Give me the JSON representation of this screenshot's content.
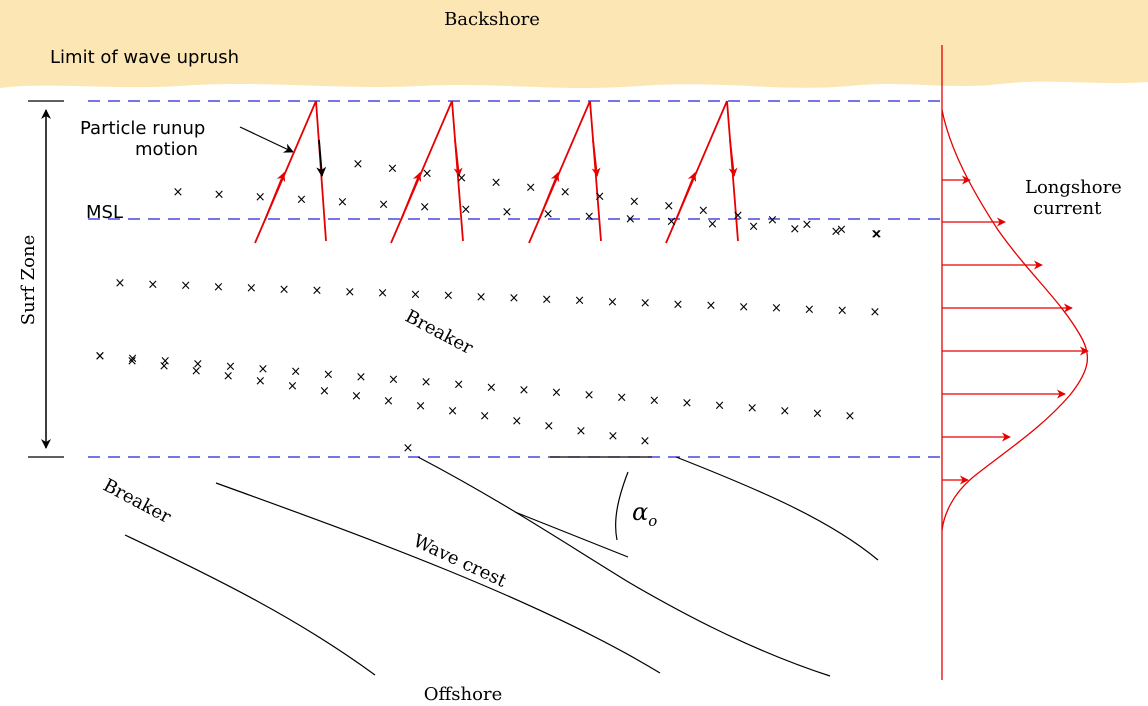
{
  "labels": {
    "backshore": "Backshore",
    "uprush": "Limit of wave uprush",
    "runup": "Particle runup",
    "motion": "motion",
    "msl": "MSL",
    "surf_zone": "Surf Zone",
    "breaker_upper": "Breaker",
    "breaker_lower": "Breaker",
    "wave_crest": "Wave crest",
    "offshore": "Offshore",
    "longshore_line1": "Longshore",
    "longshore_line2": "current",
    "alpha": "α",
    "alpha_sub": "o"
  },
  "x_mark": "×",
  "colors": {
    "backshore_fill": "#fbe6b4",
    "water_level_lines": "#2323d6",
    "runup_arrows": "#e60000",
    "current_profile": "#e60000",
    "ink": "#000000"
  }
}
